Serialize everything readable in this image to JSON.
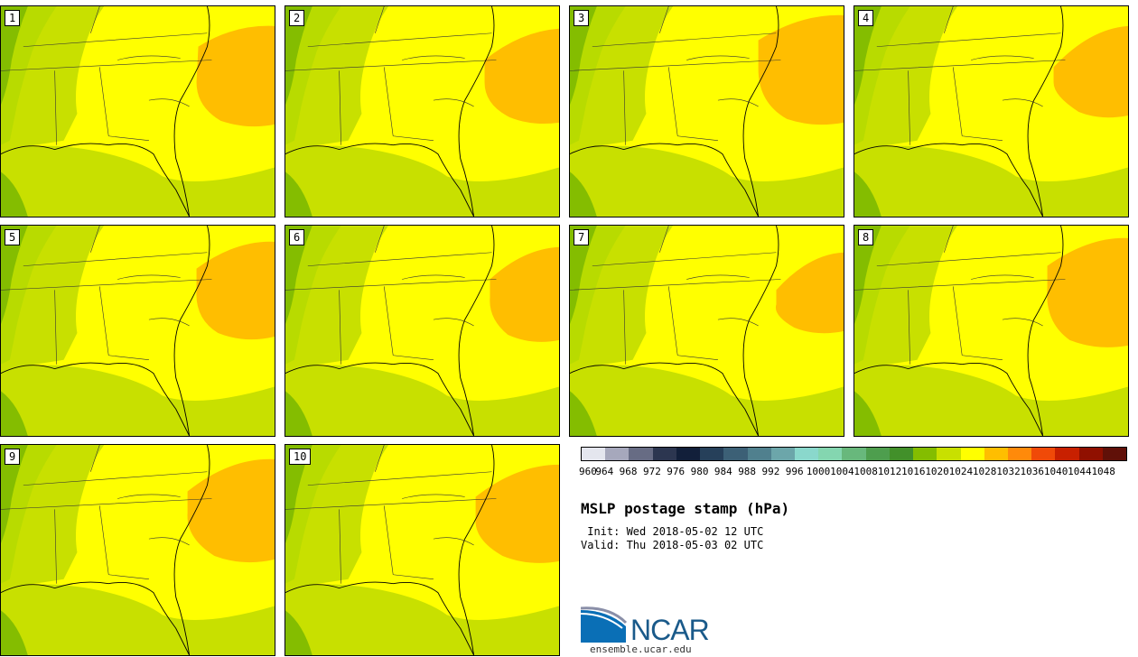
{
  "panels": [
    {
      "label": "1"
    },
    {
      "label": "2"
    },
    {
      "label": "3"
    },
    {
      "label": "4"
    },
    {
      "label": "5"
    },
    {
      "label": "6"
    },
    {
      "label": "7"
    },
    {
      "label": "8"
    },
    {
      "label": "9"
    },
    {
      "label": "10"
    }
  ],
  "colorbar": {
    "ticks": [
      "960",
      "964",
      "968",
      "972",
      "976",
      "980",
      "984",
      "988",
      "992",
      "996",
      "1000",
      "1004",
      "1008",
      "1012",
      "1016",
      "1020",
      "1024",
      "1028",
      "1032",
      "1036",
      "1040",
      "1044",
      "1048"
    ],
    "colors": [
      "#e4e6ee",
      "#a6a8bc",
      "#676c84",
      "#2c3650",
      "#121f3a",
      "#26405a",
      "#3c6076",
      "#50808e",
      "#6ca6aa",
      "#8ad8cc",
      "#84d6b0",
      "#68b87c",
      "#4e9e4e",
      "#42902a",
      "#84bd00",
      "#c8e000",
      "#ffff00",
      "#ffbe00",
      "#ff8a0a",
      "#f04a08",
      "#c82000",
      "#901000",
      "#601008"
    ]
  },
  "title": "MSLP postage stamp (hPa)",
  "init": " Init: Wed 2018-05-02 12 UTC",
  "valid": "Valid: Thu 2018-05-03 02 UTC",
  "logo": {
    "text": "NCAR",
    "url": "ensemble.ucar.edu"
  }
}
